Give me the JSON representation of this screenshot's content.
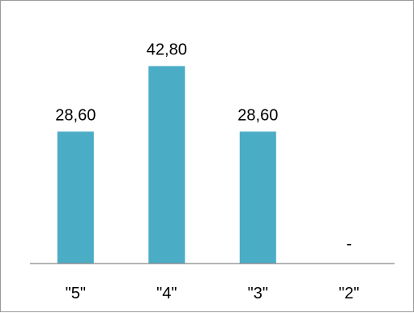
{
  "chart_data": {
    "type": "bar",
    "categories": [
      "\"5\"",
      "\"4\"",
      "\"3\"",
      "\"2\""
    ],
    "values": [
      28.6,
      42.8,
      28.6,
      0
    ],
    "data_labels": [
      "28,60",
      "42,80",
      "28,60",
      "-"
    ],
    "title": "",
    "xlabel": "",
    "ylabel": "",
    "ylim": [
      0,
      50
    ],
    "grid": false,
    "legend": "none",
    "bar_color": "#4BACC6",
    "axis_color": "#868686"
  }
}
